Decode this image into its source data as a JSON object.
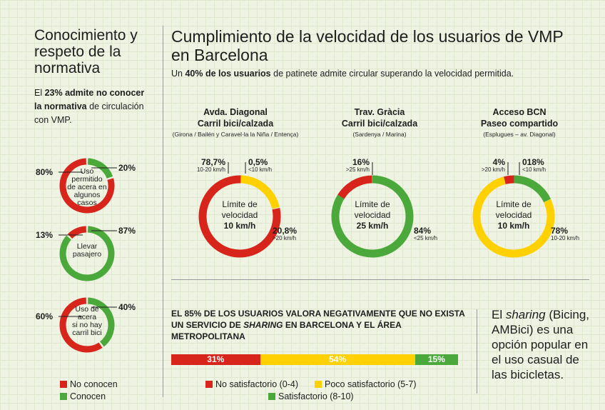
{
  "colors": {
    "red": "#d8251c",
    "yellow": "#ffd100",
    "green": "#4aa93a"
  },
  "left": {
    "title": "Conocimiento y respeto de la normativa",
    "intro_pre": "El ",
    "intro_bold": "23% admite no conocer la normativa",
    "intro_post": " de circulación con VMP.",
    "legend_red": "No conocen",
    "legend_green": "Conocen"
  },
  "main": {
    "title": "Cumplimiento de la velocidad de los usuarios de VMP en Barcelona",
    "subtitle_pre": "Un ",
    "subtitle_bold": "40% de los usuarios",
    "subtitle_post": " de patinete admite circular superando la velocidad permitida."
  },
  "locations": [
    {
      "title1": "Avda. Diagonal",
      "title2": "Carril bici/calzada",
      "sub": "(Girona / Bailén y Caravel·la la Niña / Entença)"
    },
    {
      "title1": "Trav. Gràcia",
      "title2": "Carril bici/calzada",
      "sub": "(Sardenya / Marina)"
    },
    {
      "title1": "Acceso BCN",
      "title2": "Paseo compartido",
      "sub": "(Esplugues – av. Diagonal)"
    }
  ],
  "evaluation": {
    "title_pre": "EL 85% DE LOS USUARIOS VALORA NEGATIVAMENTE QUE NO EXISTA UN SERVICIO DE ",
    "title_italic": "SHARING",
    "title_post": " EN BARCELONA Y EL ÁREA METROPOLITANA",
    "legend": [
      "No satisfactorio (0-4)",
      "Poco satisfactorio (5-7)",
      "Satisfactorio (8-10)"
    ]
  },
  "quote": {
    "pre": "El ",
    "italic": "sharing",
    "post": " (Bicing, AMBici) es una opción popular en el uso casual de las bicicletas."
  },
  "chart_data": [
    {
      "type": "pie",
      "id": "knowledge-1",
      "center_label": [
        "Uso",
        "permitido",
        "de acera en",
        "algunos",
        "casos"
      ],
      "slices": [
        {
          "name": "No conocen",
          "value": 80,
          "label": "80%",
          "color": "red"
        },
        {
          "name": "Conocen",
          "value": 20,
          "label": "20%",
          "color": "green"
        }
      ]
    },
    {
      "type": "pie",
      "id": "knowledge-2",
      "center_label": [
        "Llevar",
        "pasajero"
      ],
      "slices": [
        {
          "name": "No conocen",
          "value": 13,
          "label": "13%",
          "color": "red"
        },
        {
          "name": "Conocen",
          "value": 87,
          "label": "87%",
          "color": "green"
        }
      ]
    },
    {
      "type": "pie",
      "id": "knowledge-3",
      "center_label": [
        "Uso de",
        "acera",
        "si no hay",
        "carril bici"
      ],
      "slices": [
        {
          "name": "No conocen",
          "value": 60,
          "label": "60%",
          "color": "red"
        },
        {
          "name": "Conocen",
          "value": 40,
          "label": "40%",
          "color": "green"
        }
      ]
    },
    {
      "type": "pie",
      "id": "speed-diagonal",
      "center_label": [
        "Límite de",
        "velocidad"
      ],
      "center_value": "10 km/h",
      "slices": [
        {
          "value": 0.5,
          "label": "0,5%",
          "sub": "<10 km/h",
          "color": "green"
        },
        {
          "value": 20.8,
          "label": "20,8%",
          "sub": ">20 km/h",
          "color": "yellow"
        },
        {
          "value": 78.7,
          "label": "78,7%",
          "sub": "10-20 km/h",
          "color": "red"
        }
      ]
    },
    {
      "type": "pie",
      "id": "speed-gracia",
      "center_label": [
        "Límite de",
        "velocidad"
      ],
      "center_value": "25 km/h",
      "slices": [
        {
          "value": 84,
          "label": "84%",
          "sub": "<25 km/h",
          "color": "green"
        },
        {
          "value": 16,
          "label": "16%",
          "sub": ">25 km/h",
          "color": "red"
        }
      ]
    },
    {
      "type": "pie",
      "id": "speed-acceso",
      "center_label": [
        "Límite de",
        "velocidad"
      ],
      "center_value": "10 km/h",
      "slices": [
        {
          "value": 18,
          "label": "018%",
          "sub": "<10 km/h",
          "color": "green"
        },
        {
          "value": 78,
          "label": "78%",
          "sub": "10-20 km/h",
          "color": "yellow"
        },
        {
          "value": 4,
          "label": "4%",
          "sub": ">20 km/h",
          "color": "red"
        }
      ]
    },
    {
      "type": "bar",
      "id": "sharing-evaluation",
      "categories": [
        "No satisfactorio (0-4)",
        "Poco satisfactorio (5-7)",
        "Satisfactorio (8-10)"
      ],
      "values": [
        31,
        54,
        15
      ],
      "labels": [
        "31%",
        "54%",
        "15%"
      ],
      "colors": [
        "red",
        "yellow",
        "green"
      ]
    }
  ]
}
